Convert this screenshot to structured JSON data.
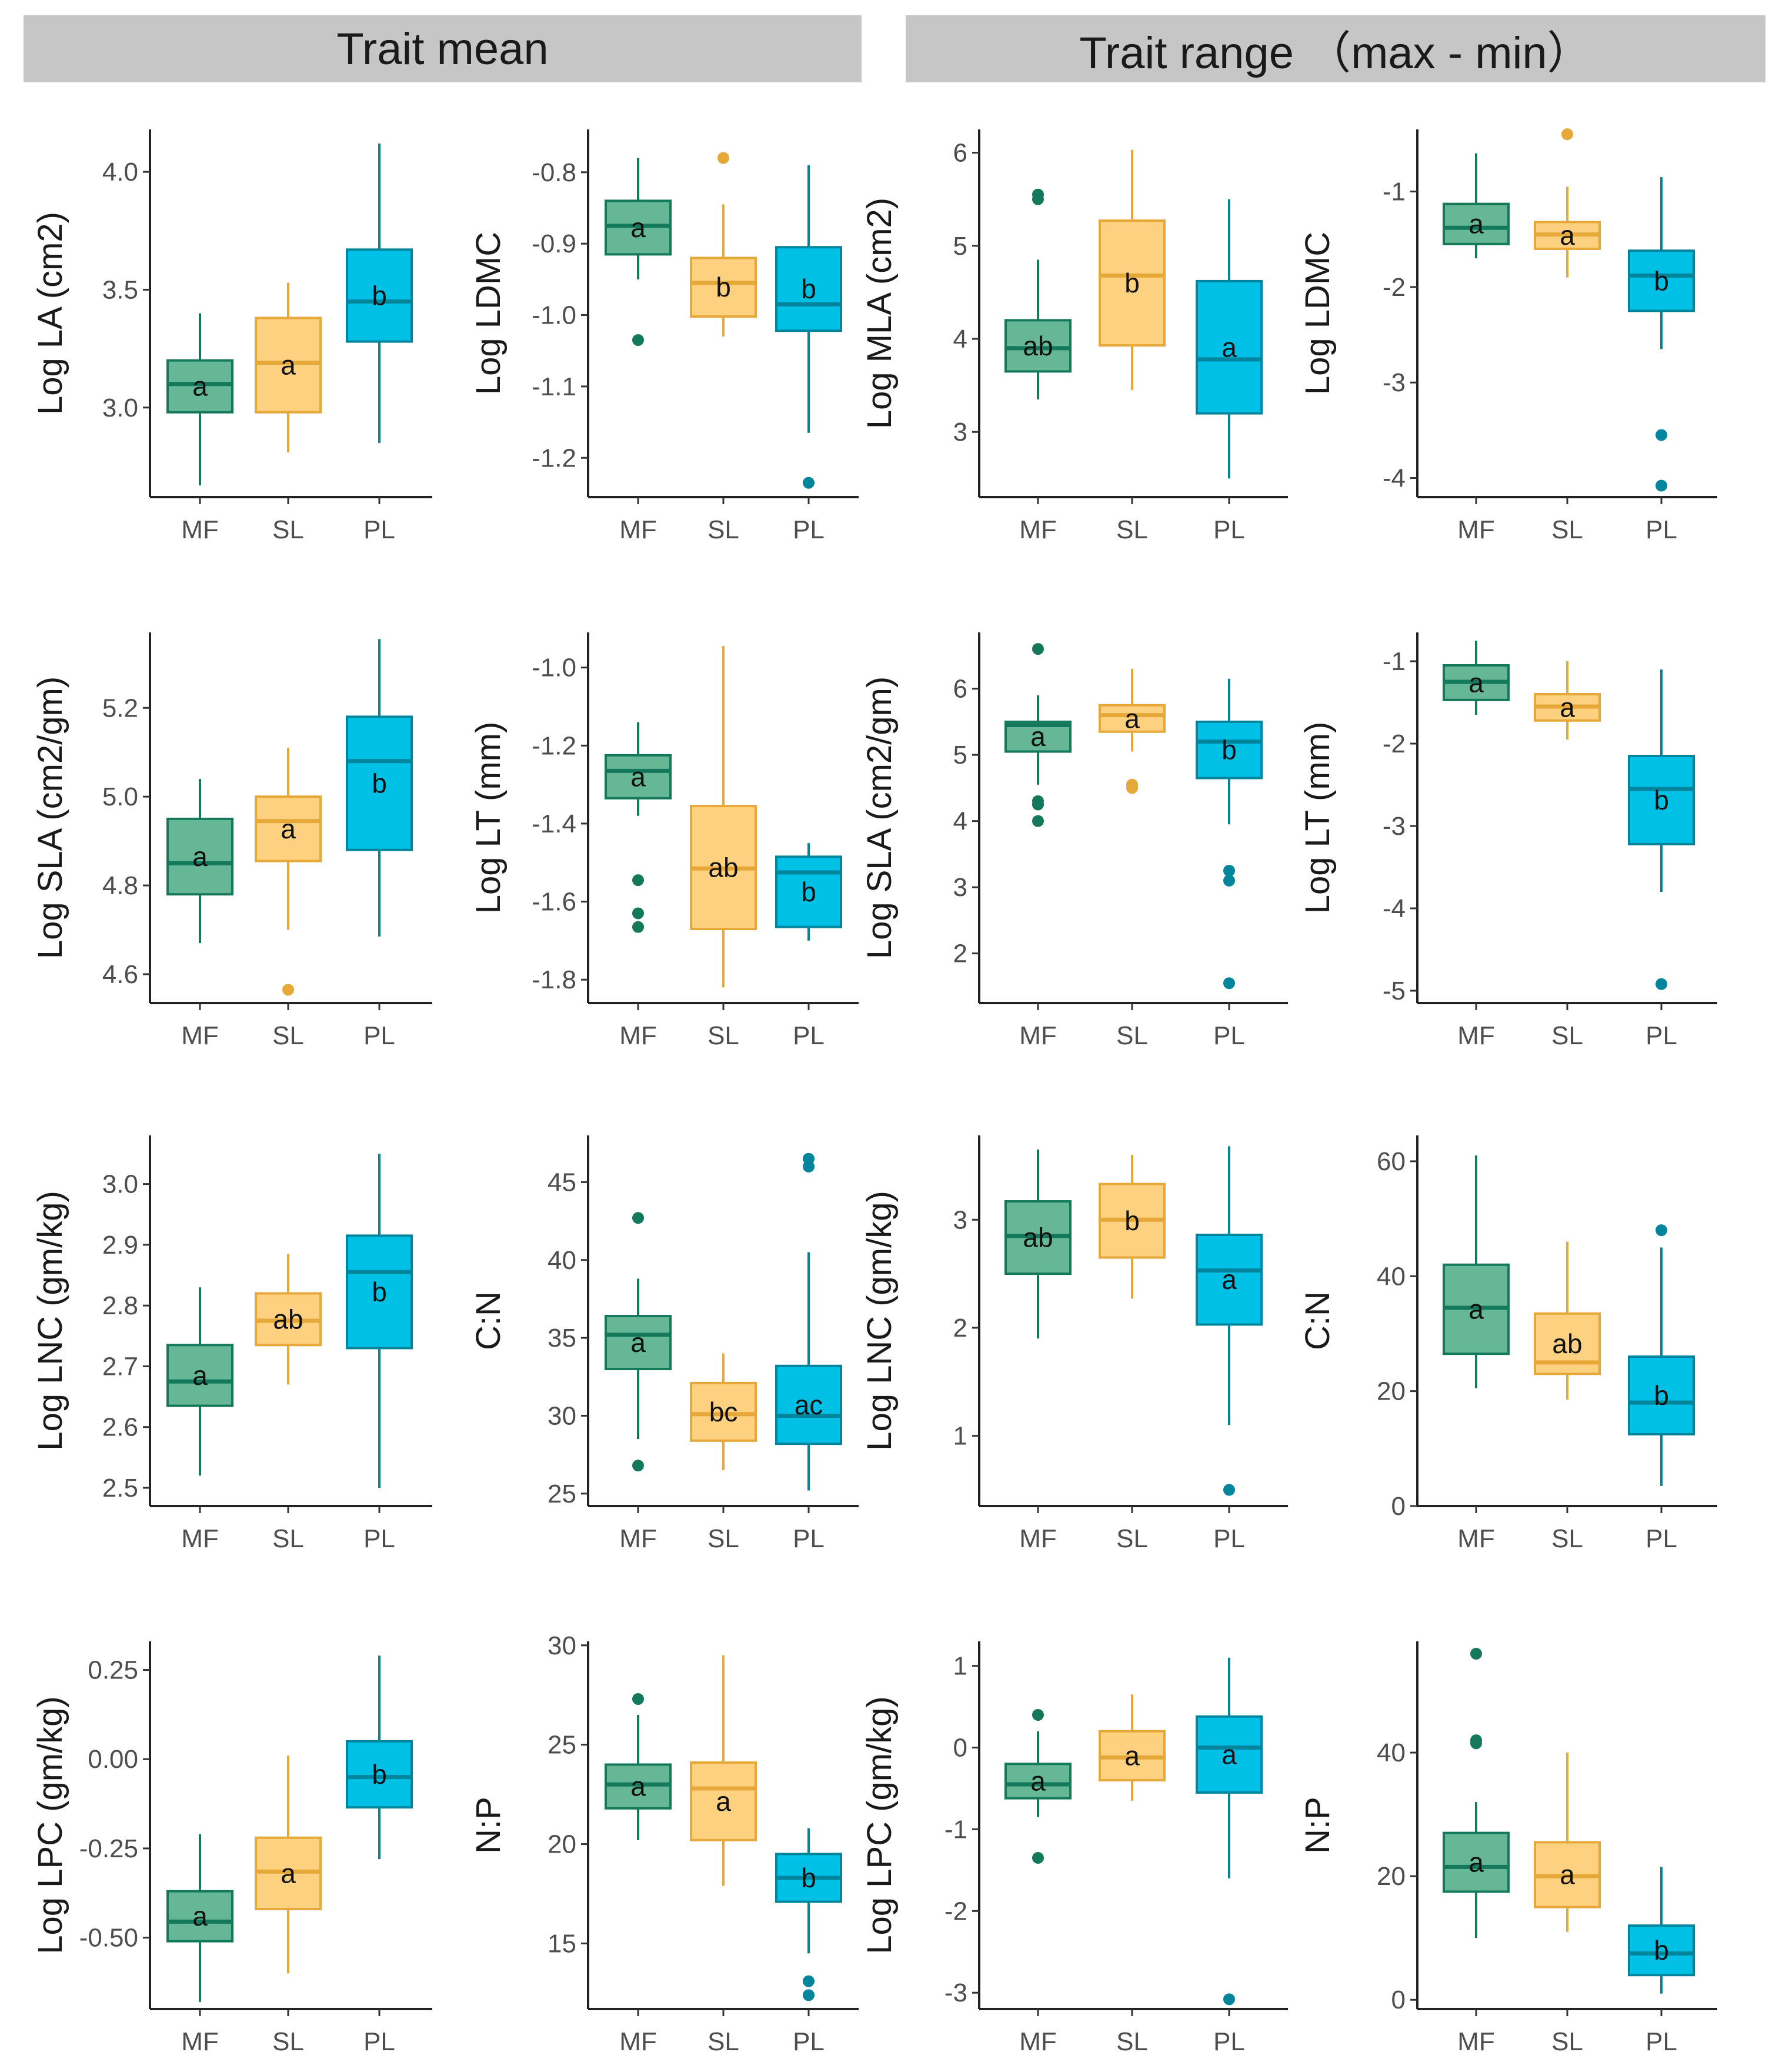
{
  "strips": {
    "left": "Trait mean",
    "right": "Trait range （max - min）"
  },
  "groups": [
    "MF",
    "SL",
    "PL"
  ],
  "colors": {
    "MF": {
      "fill": "#65b796",
      "line": "#14795a"
    },
    "SL": {
      "fill": "#fdd17f",
      "line": "#e7a83a"
    },
    "PL": {
      "fill": "#00c0e6",
      "line": "#00859c"
    }
  },
  "chart_data": [
    {
      "type": "box",
      "panel": "Trait mean",
      "ylabel": "Log LA (cm2)",
      "ylim": [
        2.62,
        4.18
      ],
      "ticks": [
        3.0,
        3.5,
        4.0
      ],
      "tick_labels": [
        "3.0",
        "3.5",
        "4.0"
      ],
      "boxes": [
        {
          "group": "MF",
          "min": 2.67,
          "q1": 2.98,
          "median": 3.1,
          "q3": 3.2,
          "max": 3.4,
          "outliers": [],
          "letter": "a"
        },
        {
          "group": "SL",
          "min": 2.81,
          "q1": 2.98,
          "median": 3.19,
          "q3": 3.38,
          "max": 3.53,
          "outliers": [],
          "letter": "a"
        },
        {
          "group": "PL",
          "min": 2.85,
          "q1": 3.28,
          "median": 3.45,
          "q3": 3.67,
          "max": 4.12,
          "outliers": [],
          "letter": "b"
        }
      ]
    },
    {
      "type": "box",
      "panel": "Trait mean",
      "ylabel": "Log LDMC",
      "ylim": [
        -1.255,
        -0.74
      ],
      "ticks": [
        -1.2,
        -1.1,
        -1.0,
        -0.9,
        -0.8
      ],
      "tick_labels": [
        "-1.2",
        "-1.1",
        "-1.0",
        "-0.9",
        "-0.8"
      ],
      "boxes": [
        {
          "group": "MF",
          "min": -0.95,
          "q1": -0.915,
          "median": -0.875,
          "q3": -0.84,
          "max": -0.78,
          "outliers": [
            -1.035
          ],
          "letter": "a"
        },
        {
          "group": "SL",
          "min": -1.03,
          "q1": -1.002,
          "median": -0.955,
          "q3": -0.92,
          "max": -0.845,
          "outliers": [
            -0.78
          ],
          "letter": "b"
        },
        {
          "group": "PL",
          "min": -1.165,
          "q1": -1.022,
          "median": -0.985,
          "q3": -0.905,
          "max": -0.79,
          "outliers": [
            -1.235
          ],
          "letter": "b"
        }
      ]
    },
    {
      "type": "box",
      "panel": "Trait range",
      "ylabel": "Log MLA (cm2)",
      "ylim": [
        2.3,
        6.25
      ],
      "ticks": [
        3,
        4,
        5,
        6
      ],
      "tick_labels": [
        "3",
        "4",
        "5",
        "6"
      ],
      "boxes": [
        {
          "group": "MF",
          "min": 3.35,
          "q1": 3.65,
          "median": 3.9,
          "q3": 4.2,
          "max": 4.85,
          "outliers": [
            5.5,
            5.55
          ],
          "letter": "ab"
        },
        {
          "group": "SL",
          "min": 3.45,
          "q1": 3.93,
          "median": 4.68,
          "q3": 5.27,
          "max": 6.03,
          "outliers": [],
          "letter": "b"
        },
        {
          "group": "PL",
          "min": 2.5,
          "q1": 3.2,
          "median": 3.78,
          "q3": 4.62,
          "max": 5.5,
          "outliers": [],
          "letter": "a"
        }
      ]
    },
    {
      "type": "box",
      "panel": "Trait range",
      "ylabel": "Log LDMC",
      "ylim": [
        -4.2,
        -0.35
      ],
      "ticks": [
        -4,
        -3,
        -2,
        -1
      ],
      "tick_labels": [
        "-4",
        "-3",
        "-2",
        "-1"
      ],
      "boxes": [
        {
          "group": "MF",
          "min": -1.7,
          "q1": -1.55,
          "median": -1.38,
          "q3": -1.13,
          "max": -0.6,
          "outliers": [],
          "letter": "a"
        },
        {
          "group": "SL",
          "min": -1.9,
          "q1": -1.6,
          "median": -1.45,
          "q3": -1.32,
          "max": -0.95,
          "outliers": [
            -0.4
          ],
          "letter": "a"
        },
        {
          "group": "PL",
          "min": -2.65,
          "q1": -2.25,
          "median": -1.88,
          "q3": -1.62,
          "max": -0.85,
          "outliers": [
            -3.55,
            -4.08
          ],
          "letter": "b"
        }
      ]
    },
    {
      "type": "box",
      "panel": "Trait mean",
      "ylabel": "Log SLA (cm2/gm)",
      "ylim": [
        4.535,
        5.37
      ],
      "ticks": [
        4.6,
        4.8,
        5.0,
        5.2
      ],
      "tick_labels": [
        "4.6",
        "4.8",
        "5.0",
        "5.2"
      ],
      "boxes": [
        {
          "group": "MF",
          "min": 4.67,
          "q1": 4.78,
          "median": 4.85,
          "q3": 4.95,
          "max": 5.04,
          "outliers": [],
          "letter": "a"
        },
        {
          "group": "SL",
          "min": 4.7,
          "q1": 4.855,
          "median": 4.945,
          "q3": 5.0,
          "max": 5.11,
          "outliers": [
            4.565
          ],
          "letter": "a"
        },
        {
          "group": "PL",
          "min": 4.685,
          "q1": 4.88,
          "median": 5.08,
          "q3": 5.18,
          "max": 5.355,
          "outliers": [],
          "letter": "b"
        }
      ]
    },
    {
      "type": "box",
      "panel": "Trait mean",
      "ylabel": "Log LT (mm)",
      "ylim": [
        -1.86,
        -0.91
      ],
      "ticks": [
        -1.8,
        -1.6,
        -1.4,
        -1.2,
        -1.0
      ],
      "tick_labels": [
        "-1.8",
        "-1.6",
        "-1.4",
        "-1.2",
        "-1.0"
      ],
      "boxes": [
        {
          "group": "MF",
          "min": -1.38,
          "q1": -1.335,
          "median": -1.265,
          "q3": -1.225,
          "max": -1.14,
          "outliers": [
            -1.545,
            -1.63,
            -1.665
          ],
          "letter": "a"
        },
        {
          "group": "SL",
          "min": -1.82,
          "q1": -1.67,
          "median": -1.515,
          "q3": -1.355,
          "max": -0.945,
          "outliers": [],
          "letter": "ab"
        },
        {
          "group": "PL",
          "min": -1.7,
          "q1": -1.665,
          "median": -1.525,
          "q3": -1.485,
          "max": -1.45,
          "outliers": [],
          "letter": "b"
        }
      ]
    },
    {
      "type": "box",
      "panel": "Trait range",
      "ylabel": "Log SLA (cm2/gm)",
      "ylim": [
        1.25,
        6.85
      ],
      "ticks": [
        2,
        3,
        4,
        5,
        6
      ],
      "tick_labels": [
        "2",
        "3",
        "4",
        "5",
        "6"
      ],
      "boxes": [
        {
          "group": "MF",
          "min": 4.55,
          "q1": 5.05,
          "median": 5.45,
          "q3": 5.5,
          "max": 5.9,
          "outliers": [
            6.6,
            4.3,
            4.25,
            4.0
          ],
          "letter": "a"
        },
        {
          "group": "SL",
          "min": 5.05,
          "q1": 5.35,
          "median": 5.6,
          "q3": 5.75,
          "max": 6.3,
          "outliers": [
            4.55,
            4.5
          ],
          "letter": "a"
        },
        {
          "group": "PL",
          "min": 3.95,
          "q1": 4.65,
          "median": 5.2,
          "q3": 5.5,
          "max": 6.15,
          "outliers": [
            3.25,
            3.1,
            1.55
          ],
          "letter": "b"
        }
      ]
    },
    {
      "type": "box",
      "panel": "Trait range",
      "ylabel": "Log LT (mm)",
      "ylim": [
        -5.15,
        -0.65
      ],
      "ticks": [
        -5,
        -4,
        -3,
        -2,
        -1
      ],
      "tick_labels": [
        "-5",
        "-4",
        "-3",
        "-2",
        "-1"
      ],
      "boxes": [
        {
          "group": "MF",
          "min": -1.65,
          "q1": -1.47,
          "median": -1.25,
          "q3": -1.05,
          "max": -0.75,
          "outliers": [],
          "letter": "a"
        },
        {
          "group": "SL",
          "min": -1.95,
          "q1": -1.72,
          "median": -1.55,
          "q3": -1.4,
          "max": -1.0,
          "outliers": [],
          "letter": "a"
        },
        {
          "group": "PL",
          "min": -3.8,
          "q1": -3.22,
          "median": -2.55,
          "q3": -2.15,
          "max": -1.1,
          "outliers": [
            -4.92
          ],
          "letter": "b"
        }
      ]
    },
    {
      "type": "box",
      "panel": "Trait mean",
      "ylabel": "Log LNC (gm/kg)",
      "ylim": [
        2.47,
        3.08
      ],
      "ticks": [
        2.5,
        2.6,
        2.7,
        2.8,
        2.9,
        3.0
      ],
      "tick_labels": [
        "2.5",
        "2.6",
        "2.7",
        "2.8",
        "2.9",
        "3.0"
      ],
      "boxes": [
        {
          "group": "MF",
          "min": 2.52,
          "q1": 2.635,
          "median": 2.675,
          "q3": 2.735,
          "max": 2.83,
          "outliers": [],
          "letter": "a"
        },
        {
          "group": "SL",
          "min": 2.67,
          "q1": 2.735,
          "median": 2.775,
          "q3": 2.82,
          "max": 2.885,
          "outliers": [],
          "letter": "ab"
        },
        {
          "group": "PL",
          "min": 2.5,
          "q1": 2.73,
          "median": 2.855,
          "q3": 2.915,
          "max": 3.05,
          "outliers": [],
          "letter": "b"
        }
      ]
    },
    {
      "type": "box",
      "panel": "Trait mean",
      "ylabel": "C:N",
      "ylim": [
        24.2,
        48.0
      ],
      "ticks": [
        25,
        30,
        35,
        40,
        45
      ],
      "tick_labels": [
        "25",
        "30",
        "35",
        "40",
        "45"
      ],
      "boxes": [
        {
          "group": "MF",
          "min": 28.5,
          "q1": 33.0,
          "median": 35.2,
          "q3": 36.4,
          "max": 38.8,
          "outliers": [
            42.7,
            26.8
          ],
          "letter": "a"
        },
        {
          "group": "SL",
          "min": 26.5,
          "q1": 28.4,
          "median": 30.1,
          "q3": 32.1,
          "max": 34.0,
          "outliers": [],
          "letter": "bc"
        },
        {
          "group": "PL",
          "min": 25.2,
          "q1": 28.2,
          "median": 30.0,
          "q3": 33.2,
          "max": 40.5,
          "outliers": [
            46.0,
            46.5
          ],
          "letter": "ac"
        }
      ]
    },
    {
      "type": "box",
      "panel": "Trait range",
      "ylabel": "Log LNC (gm/kg)",
      "ylim": [
        0.35,
        3.78
      ],
      "ticks": [
        1,
        2,
        3
      ],
      "tick_labels": [
        "1",
        "2",
        "3"
      ],
      "boxes": [
        {
          "group": "MF",
          "min": 1.9,
          "q1": 2.5,
          "median": 2.85,
          "q3": 3.17,
          "max": 3.65,
          "outliers": [],
          "letter": "ab"
        },
        {
          "group": "SL",
          "min": 2.27,
          "q1": 2.65,
          "median": 3.0,
          "q3": 3.33,
          "max": 3.6,
          "outliers": [],
          "letter": "b"
        },
        {
          "group": "PL",
          "min": 1.1,
          "q1": 2.03,
          "median": 2.53,
          "q3": 2.86,
          "max": 3.68,
          "outliers": [
            0.5
          ],
          "letter": "a"
        }
      ]
    },
    {
      "type": "box",
      "panel": "Trait range",
      "ylabel": "C:N",
      "ylim": [
        0,
        64.5
      ],
      "ticks": [
        0,
        20,
        40,
        60
      ],
      "tick_labels": [
        "0",
        "20",
        "40",
        "60"
      ],
      "boxes": [
        {
          "group": "MF",
          "min": 20.5,
          "q1": 26.5,
          "median": 34.5,
          "q3": 42.0,
          "max": 61.0,
          "outliers": [],
          "letter": "a"
        },
        {
          "group": "SL",
          "min": 18.5,
          "q1": 23.0,
          "median": 25.0,
          "q3": 33.5,
          "max": 46.0,
          "outliers": [],
          "letter": "ab"
        },
        {
          "group": "PL",
          "min": 3.5,
          "q1": 12.5,
          "median": 18.0,
          "q3": 26.0,
          "max": 45.0,
          "outliers": [
            48.0
          ],
          "letter": "b"
        }
      ]
    },
    {
      "type": "box",
      "panel": "Trait mean",
      "ylabel": "Log LPC (gm/kg)",
      "ylim": [
        -0.7,
        0.33
      ],
      "ticks": [
        -0.5,
        -0.25,
        0.0,
        0.25
      ],
      "tick_labels": [
        "-0.50",
        "-0.25",
        "0.00",
        "0.25"
      ],
      "boxes": [
        {
          "group": "MF",
          "min": -0.68,
          "q1": -0.51,
          "median": -0.455,
          "q3": -0.37,
          "max": -0.21,
          "outliers": [],
          "letter": "a"
        },
        {
          "group": "SL",
          "min": -0.6,
          "q1": -0.42,
          "median": -0.315,
          "q3": -0.22,
          "max": 0.01,
          "outliers": [],
          "letter": "a"
        },
        {
          "group": "PL",
          "min": -0.28,
          "q1": -0.135,
          "median": -0.05,
          "q3": 0.05,
          "max": 0.29,
          "outliers": [],
          "letter": "b"
        }
      ]
    },
    {
      "type": "box",
      "panel": "Trait mean",
      "ylabel": "N:P",
      "ylim": [
        11.7,
        30.2
      ],
      "ticks": [
        15,
        20,
        25,
        30
      ],
      "tick_labels": [
        "15",
        "20",
        "25",
        "30"
      ],
      "boxes": [
        {
          "group": "MF",
          "min": 20.2,
          "q1": 21.8,
          "median": 23.0,
          "q3": 24.0,
          "max": 26.5,
          "outliers": [
            27.3
          ],
          "letter": "a"
        },
        {
          "group": "SL",
          "min": 17.9,
          "q1": 20.2,
          "median": 22.8,
          "q3": 24.1,
          "max": 29.5,
          "outliers": [],
          "letter": "a"
        },
        {
          "group": "PL",
          "min": 14.5,
          "q1": 17.1,
          "median": 18.3,
          "q3": 19.5,
          "max": 20.8,
          "outliers": [
            13.1,
            12.4
          ],
          "letter": "b"
        }
      ]
    },
    {
      "type": "box",
      "panel": "Trait range",
      "ylabel": "Log LPC (gm/kg)",
      "ylim": [
        -3.2,
        1.3
      ],
      "ticks": [
        -3,
        -2,
        -1,
        0,
        1
      ],
      "tick_labels": [
        "-3",
        "-2",
        "-1",
        "0",
        "1"
      ],
      "boxes": [
        {
          "group": "MF",
          "min": -0.85,
          "q1": -0.62,
          "median": -0.45,
          "q3": -0.2,
          "max": 0.2,
          "outliers": [
            0.4,
            -1.35
          ],
          "letter": "a"
        },
        {
          "group": "SL",
          "min": -0.65,
          "q1": -0.4,
          "median": -0.12,
          "q3": 0.2,
          "max": 0.65,
          "outliers": [],
          "letter": "a"
        },
        {
          "group": "PL",
          "min": -1.6,
          "q1": -0.55,
          "median": 0.0,
          "q3": 0.38,
          "max": 1.1,
          "outliers": [
            -3.08
          ],
          "letter": "a"
        }
      ]
    },
    {
      "type": "box",
      "panel": "Trait range",
      "ylabel": "N:P",
      "ylim": [
        -1.5,
        58
      ],
      "ticks": [
        0,
        20,
        40
      ],
      "tick_labels": [
        "0",
        "20",
        "40"
      ],
      "boxes": [
        {
          "group": "MF",
          "min": 10.0,
          "q1": 17.5,
          "median": 21.5,
          "q3": 27.0,
          "max": 32.0,
          "outliers": [
            56.0,
            42.0,
            41.5
          ],
          "letter": "a"
        },
        {
          "group": "SL",
          "min": 11.0,
          "q1": 15.0,
          "median": 20.0,
          "q3": 25.5,
          "max": 40.0,
          "outliers": [],
          "letter": "a"
        },
        {
          "group": "PL",
          "min": 1.0,
          "q1": 4.0,
          "median": 7.5,
          "q3": 12.0,
          "max": 21.5,
          "outliers": [],
          "letter": "b"
        }
      ]
    }
  ]
}
